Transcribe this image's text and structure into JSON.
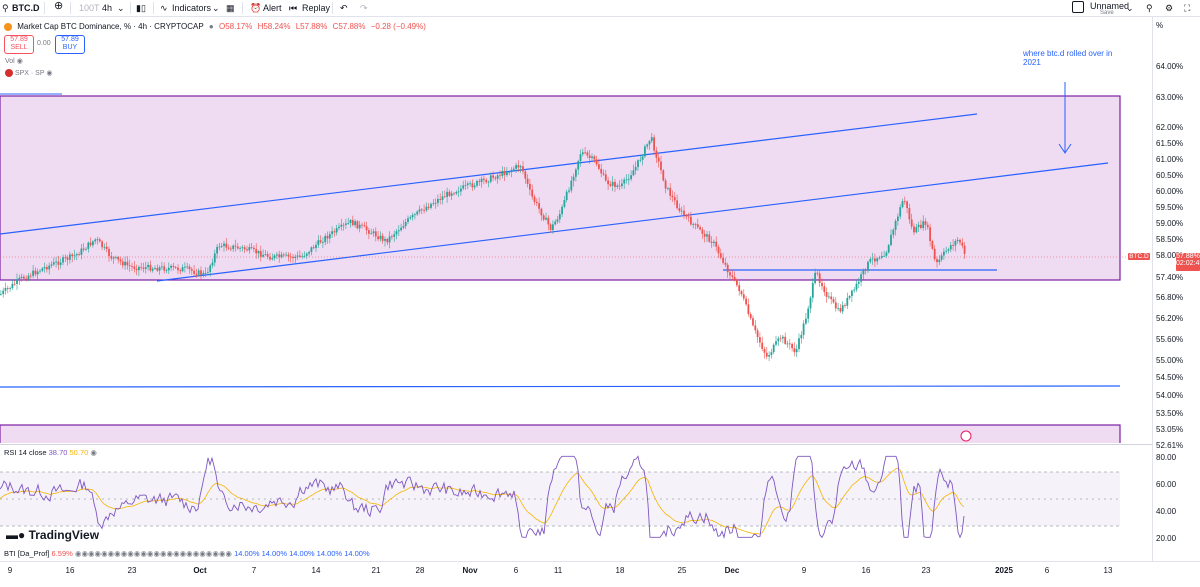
{
  "topbar": {
    "symbol": "BTC.D",
    "interval_muted": "100T",
    "interval": "4h",
    "indicators_label": "Indicators",
    "alert_label": "Alert",
    "replay_label": "Replay",
    "layout_name": "Unnamed",
    "layout_sub": "Save"
  },
  "legend": {
    "title": "Market Cap BTC Dominance, % · 4h · CRYPTOCAP",
    "o": "O58.17%",
    "h": "H58.24%",
    "l": "L57.88%",
    "c": "C57.88%",
    "chg": "−0.28 (−0.49%)",
    "sell_price": "57.89",
    "sell_label": "SELL",
    "spread": "0.00",
    "buy_price": "57.89",
    "buy_label": "BUY",
    "vol_label": "Vol",
    "spx_label": "SPX · SP"
  },
  "annotation": {
    "line1": "where btc.d rolled over in",
    "line2": "2021"
  },
  "axis": {
    "unit": "%",
    "ticks": [
      "64.00%",
      "63.00%",
      "62.00%",
      "61.50%",
      "61.00%",
      "60.50%",
      "60.00%",
      "59.50%",
      "59.00%",
      "58.50%",
      "58.00%",
      "57.40%",
      "56.80%",
      "56.20%",
      "55.60%",
      "55.00%",
      "54.50%",
      "54.00%",
      "53.50%",
      "53.05%",
      "52.61%"
    ],
    "price_tag": "BTC.D",
    "price_value": "57.88%",
    "countdown": "02:02:45",
    "rsi_ticks": [
      "80.00",
      "60.00",
      "40.00",
      "20.00"
    ]
  },
  "rsi": {
    "label": "RSI",
    "params": "14 close",
    "v1": "38.70",
    "v2": "50.70"
  },
  "bti": {
    "label": "BTI [Da_Prof]",
    "v1": "6.59%",
    "values": [
      "14.00%",
      "14.00%",
      "14.00%",
      "14.00%",
      "14.00%"
    ]
  },
  "logo": "TradingView",
  "time_axis": [
    "9",
    "16",
    "23",
    "Oct",
    "7",
    "14",
    "21",
    "28",
    "Nov",
    "6",
    "11",
    "18",
    "25",
    "Dec",
    "9",
    "16",
    "23",
    "2025",
    "6",
    "13"
  ],
  "colors": {
    "up": "#26a69a",
    "down": "#ef5350",
    "zone": "#e1bee7",
    "zone_border": "#7b1fa2",
    "trend": "#2962ff",
    "rsi_line": "#7e57c2",
    "rsi_ma": "#f7b500"
  }
}
